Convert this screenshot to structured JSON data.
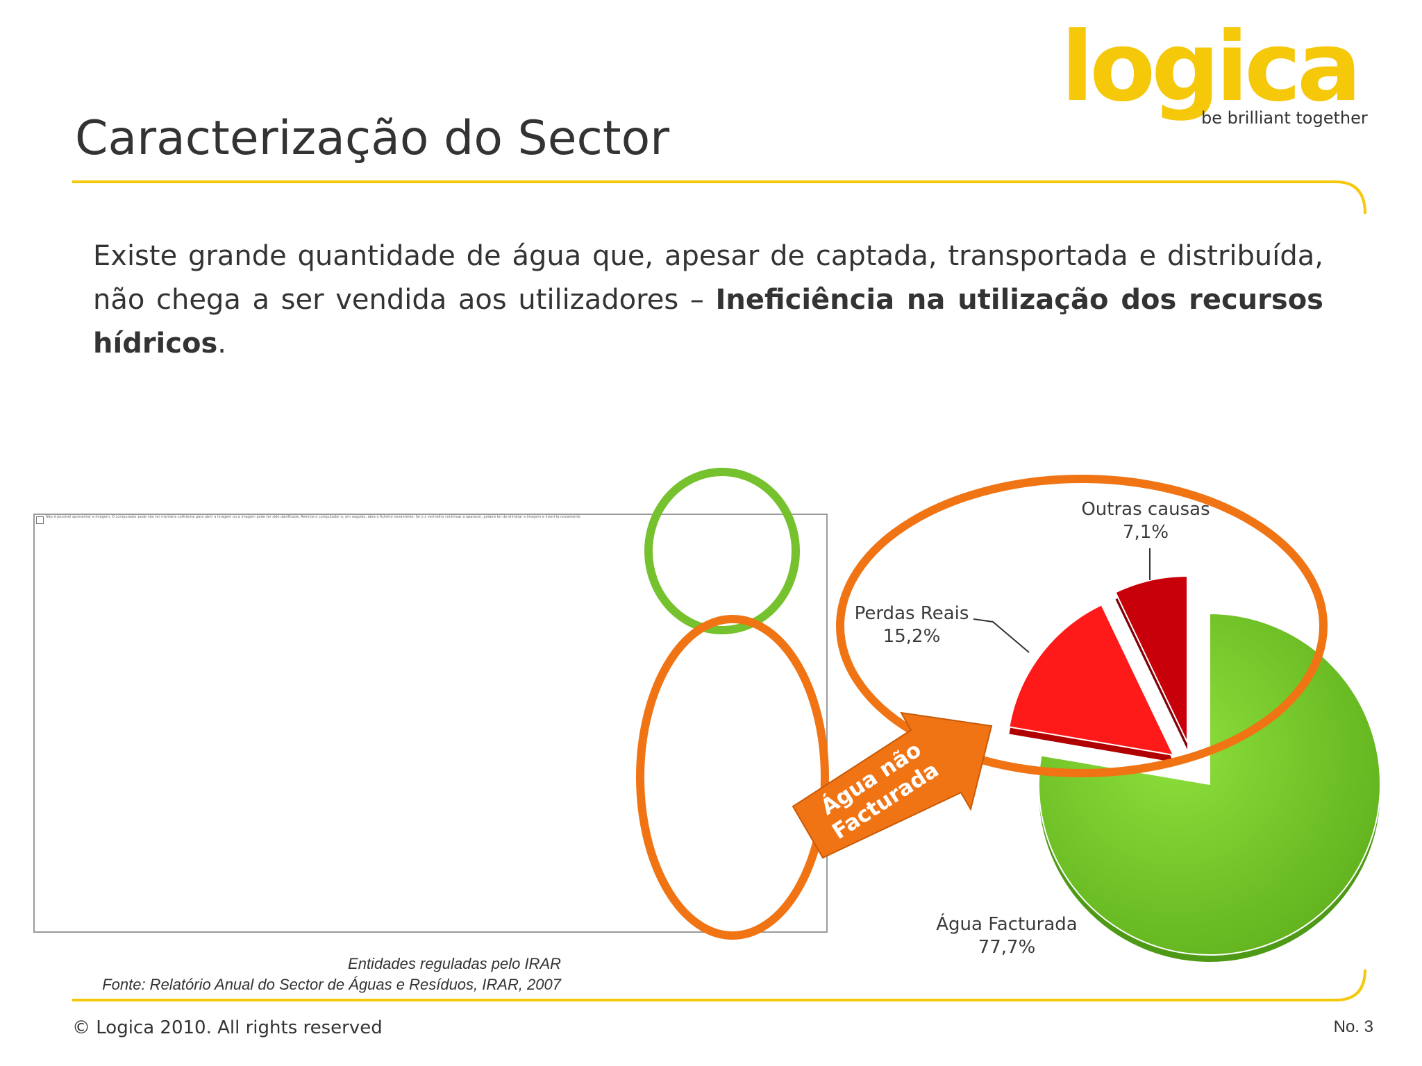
{
  "slide": {
    "title": "Caracterização do Sector",
    "body": {
      "part1": "Existe grande quantidade de água que, apesar de captada, transportada e distribuída, não chega a ser vendida aos utilizadores – ",
      "bold1": "Ineficiência na utilização dos recursos hídricos",
      "end": "."
    },
    "logo": {
      "wordmark": "logica",
      "tagline": "be brilliant together",
      "color": "#f6c80a"
    },
    "image_placeholder": {
      "message": "Não é possível apresentar a imagem. O computador pode não ter memória suficiente para abrir a imagem ou a imagem pode ter sido danificada. Reinicie o computador e, em seguida, abra o ficheiro novamente. Se o x vermelho continuar a aparecer, poderá ter de eliminar a imagem e inseri-la novamente."
    },
    "caption": {
      "line1": "Entidades reguladas pelo IRAR",
      "line2": "Fonte: Relatório Anual do Sector de Águas e Resíduos, IRAR, 2007"
    },
    "arrow": {
      "line1": "Água não",
      "line2": "Facturada",
      "color": "#f07414"
    },
    "footer": {
      "copyright": "© Logica 2010. All rights reserved",
      "page": "No. 3"
    },
    "accent_color": "#f6c80a"
  },
  "chart_data": {
    "type": "pie",
    "slices": [
      {
        "label": "Água Facturada",
        "value_label": "77,7%",
        "value": 77.7,
        "color": "#7ad32e"
      },
      {
        "label": "Perdas Reais",
        "value_label": "15,2%",
        "value": 15.2,
        "color": "#ff1a1a"
      },
      {
        "label": "Outras causas",
        "value_label": "7,1%",
        "value": 7.1,
        "color": "#c8000a"
      }
    ]
  }
}
